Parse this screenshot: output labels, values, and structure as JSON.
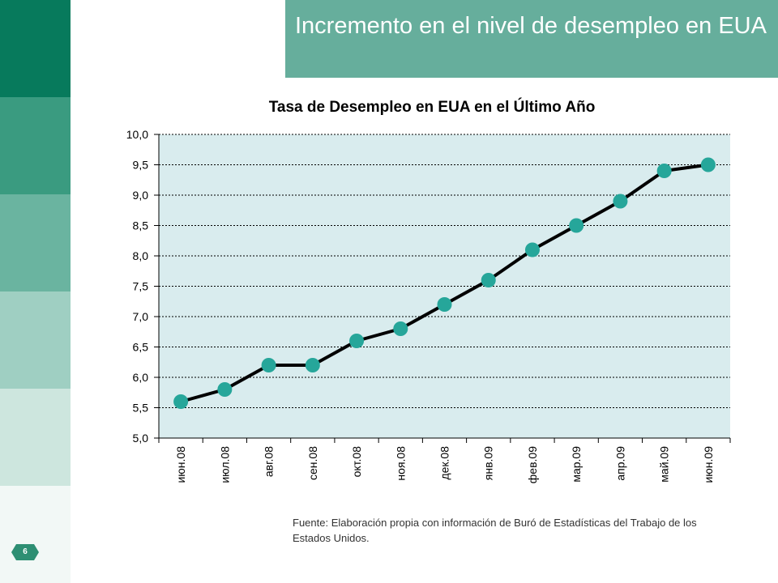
{
  "slide": {
    "title": "Incremento en el nivel de desempleo en EUA",
    "page_number": "6",
    "source": "Fuente: Elaboración propia con información de Buró de Estadísticas del Trabajo de los Estados Unidos."
  },
  "colors": {
    "sidebar": [
      "#077a5c",
      "#3a9b80",
      "#6ab4a0",
      "#9fcfc2",
      "#cde6de",
      "#f2f8f6"
    ],
    "title_bg": "#66ae9c",
    "plot_bg": "#d9ecee",
    "line": "#000000",
    "marker": "#26a69a"
  },
  "chart_data": {
    "type": "line",
    "title": "Tasa de Desempleo en EUA en el Último Año",
    "categories": [
      "июн.08",
      "июл.08",
      "авг.08",
      "сен.08",
      "окт.08",
      "ноя.08",
      "дек.08",
      "янв.09",
      "фев.09",
      "мар.09",
      "апр.09",
      "май.09",
      "июн.09"
    ],
    "series": [
      {
        "values": [
          5.6,
          5.8,
          6.2,
          6.2,
          6.6,
          6.8,
          7.2,
          7.6,
          8.1,
          8.5,
          8.9,
          9.4,
          9.5
        ]
      }
    ],
    "ylim": [
      5.0,
      10.0
    ],
    "yticks": [
      "5,0",
      "5,5",
      "6,0",
      "6,5",
      "7,0",
      "7,5",
      "8,0",
      "8,5",
      "9,0",
      "9,5",
      "10,0"
    ],
    "grid": true,
    "legend": "none"
  }
}
